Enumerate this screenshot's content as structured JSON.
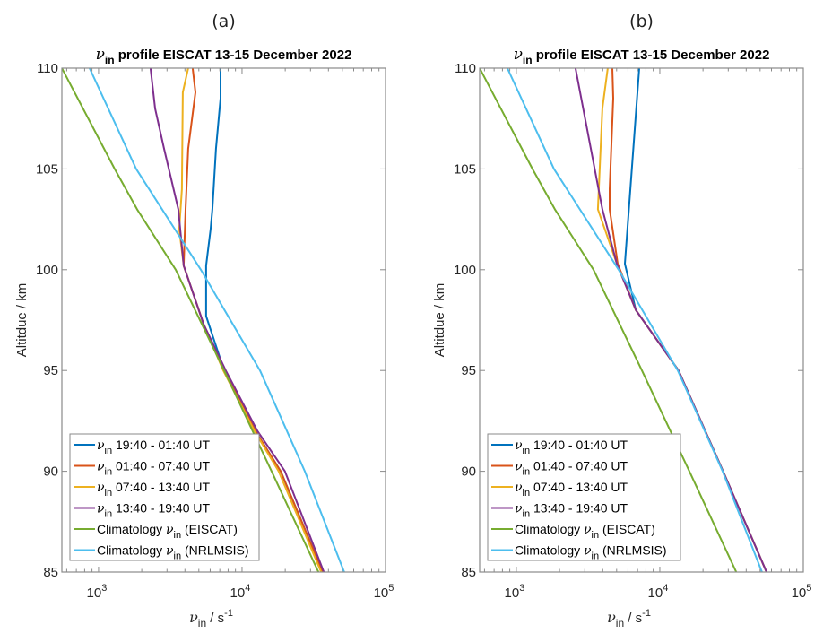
{
  "chart_data": [
    {
      "type": "line",
      "panel_label": "(a)",
      "title": {
        "symbol": "ν",
        "subscript": "in",
        "text": " profile EISCAT 13-15 December 2022"
      },
      "xlabel": {
        "symbol": "ν",
        "subscript": "in",
        "text": " / s",
        "superscript": "-1"
      },
      "ylabel": "Altitdue / km",
      "xscale": "log",
      "xlim": [
        555,
        100000
      ],
      "ylim": [
        85,
        110
      ],
      "xticks": [
        {
          "base": "10",
          "exp": "3",
          "value": 1000
        },
        {
          "base": "10",
          "exp": "4",
          "value": 10000
        },
        {
          "base": "10",
          "exp": "5",
          "value": 100000
        }
      ],
      "yticks": [
        85,
        90,
        95,
        100,
        105,
        110
      ],
      "legend_position": "bottom-left",
      "series": [
        {
          "name": "19:40 - 01:40 UT",
          "label_prefix": "ν",
          "label_sub": "in",
          "label_rest": " 19:40 - 01:40 UT",
          "color": "#0072BD",
          "points": [
            [
              7081,
              110
            ],
            [
              7081,
              108.5
            ],
            [
              6579,
              106
            ],
            [
              6213,
              103
            ],
            [
              6038,
              102
            ],
            [
              5623,
              100.2
            ],
            [
              5623,
              99.5
            ],
            [
              5623,
              97.7
            ],
            [
              7499,
              95
            ],
            [
              12385,
              92
            ],
            [
              18600,
              90
            ],
            [
              36500,
              85
            ]
          ]
        },
        {
          "name": "01:40 - 07:40 UT",
          "label_prefix": "ν",
          "label_sub": "in",
          "label_rest": " 01:40 - 07:40 UT",
          "color": "#D95319",
          "points": [
            [
              4531,
              110
            ],
            [
              4732,
              108.8
            ],
            [
              4217,
              106
            ],
            [
              4039,
              103
            ],
            [
              3924,
              100.2
            ],
            [
              5400,
              97.3
            ],
            [
              7499,
              95
            ],
            [
              12385,
              92
            ],
            [
              18600,
              90
            ],
            [
              36500,
              85
            ]
          ]
        },
        {
          "name": "07:40 - 13:40 UT",
          "label_prefix": "ν",
          "label_sub": "in",
          "label_rest": " 07:40 - 13:40 UT",
          "color": "#EDB120",
          "points": [
            [
              4217,
              110
            ],
            [
              3867,
              108.8
            ],
            [
              3811,
              104
            ],
            [
              3650,
              102
            ],
            [
              3924,
              100.2
            ],
            [
              5400,
              97.3
            ],
            [
              7400,
              95
            ],
            [
              12200,
              92
            ],
            [
              18000,
              90
            ],
            [
              35600,
              85
            ]
          ]
        },
        {
          "name": "13:40 - 19:40 UT",
          "label_prefix": "ν",
          "label_sub": "in",
          "label_rest": " 13:40 - 19:40 UT",
          "color": "#7E2F8E",
          "points": [
            [
              2303,
              110
            ],
            [
              2477,
              108
            ],
            [
              2860,
              106
            ],
            [
              3598,
              103
            ],
            [
              3924,
              100.2
            ],
            [
              5400,
              97.3
            ],
            [
              7700,
              95
            ],
            [
              12800,
              92
            ],
            [
              19897,
              90
            ],
            [
              37180,
              85
            ]
          ]
        },
        {
          "name": "Climatology (EISCAT)",
          "label_prefix": "Climatology ",
          "label_sub": "in",
          "label_symbol": "ν",
          "label_rest": " (EISCAT)",
          "color": "#77AC30",
          "points": [
            [
              555,
              110
            ],
            [
              1296,
              105
            ],
            [
              1857,
              103
            ],
            [
              3449,
              100
            ],
            [
              7499,
              95
            ],
            [
              16070,
              90
            ],
            [
              34065,
              85
            ]
          ]
        },
        {
          "name": "Climatology (NRLMSIS)",
          "label_prefix": "Climatology ",
          "label_sub": "in",
          "label_symbol": "ν",
          "label_rest": " (NRLMSIS)",
          "color": "#4DBEEE",
          "points": [
            [
              866,
              110
            ],
            [
              1830,
              105
            ],
            [
              5160,
              100
            ],
            [
              13335,
              95
            ],
            [
              27384,
              90
            ],
            [
              51530,
              85
            ]
          ]
        }
      ]
    },
    {
      "type": "line",
      "panel_label": "(b)",
      "title": {
        "symbol": "ν",
        "subscript": "in",
        "text": " profile EISCAT 13-15 December 2022"
      },
      "xlabel": {
        "symbol": "ν",
        "subscript": "in",
        "text": " / s",
        "superscript": "-1"
      },
      "ylabel": "Altitdue / km",
      "xscale": "log",
      "xlim": [
        555,
        100000
      ],
      "ylim": [
        85,
        110
      ],
      "xticks": [
        {
          "base": "10",
          "exp": "3",
          "value": 1000
        },
        {
          "base": "10",
          "exp": "4",
          "value": 10000
        },
        {
          "base": "10",
          "exp": "5",
          "value": 100000
        }
      ],
      "yticks": [
        85,
        90,
        95,
        100,
        105,
        110
      ],
      "legend_position": "bottom-left",
      "series": [
        {
          "name": "19:40 - 01:40 UT",
          "label_prefix": "ν",
          "label_sub": "in",
          "label_rest": " 19:40 - 01:40 UT",
          "color": "#0072BD",
          "points": [
            [
              7187,
              110
            ],
            [
              5706,
              100.3
            ],
            [
              6800,
              98
            ],
            [
              13500,
              95
            ],
            [
              27600,
              90
            ],
            [
              55400,
              85
            ]
          ]
        },
        {
          "name": "01:40 - 07:40 UT",
          "label_prefix": "ν",
          "label_sub": "in",
          "label_rest": " 01:40 - 07:40 UT",
          "color": "#D95319",
          "points": [
            [
              4665,
              110
            ],
            [
              4732,
              108.5
            ],
            [
              4467,
              104
            ],
            [
              4467,
              103
            ],
            [
              5085,
              100.3
            ],
            [
              6800,
              98
            ],
            [
              13500,
              95
            ],
            [
              27600,
              90
            ],
            [
              55400,
              85
            ]
          ]
        },
        {
          "name": "07:40 - 13:40 UT",
          "label_prefix": "ν",
          "label_sub": "in",
          "label_rest": " 07:40 - 13:40 UT",
          "color": "#EDB120",
          "points": [
            [
              4340,
              110
            ],
            [
              3981,
              108
            ],
            [
              3704,
              103
            ],
            [
              5012,
              100.3
            ],
            [
              6800,
              98
            ],
            [
              13500,
              95
            ],
            [
              27600,
              90
            ],
            [
              55400,
              85
            ]
          ]
        },
        {
          "name": "13:40 - 19:40 UT",
          "label_prefix": "ν",
          "label_sub": "in",
          "label_rest": " 13:40 - 19:40 UT",
          "color": "#7E2F8E",
          "points": [
            [
              2583,
              110
            ],
            [
              3981,
              103
            ],
            [
              5012,
              100.3
            ],
            [
              6800,
              98
            ],
            [
              13500,
              95
            ],
            [
              27600,
              90
            ],
            [
              55400,
              85
            ]
          ]
        },
        {
          "name": "Climatology (EISCAT)",
          "label_prefix": "Climatology ",
          "label_sub": "in",
          "label_symbol": "ν",
          "label_rest": " (EISCAT)",
          "color": "#77AC30",
          "points": [
            [
              555,
              110
            ],
            [
              1296,
              105
            ],
            [
              1857,
              103
            ],
            [
              3449,
              100
            ],
            [
              7499,
              95
            ],
            [
              16070,
              90
            ],
            [
              34065,
              85
            ]
          ]
        },
        {
          "name": "Climatology (NRLMSIS)",
          "label_prefix": "Climatology ",
          "label_sub": "in",
          "label_symbol": "ν",
          "label_rest": " (NRLMSIS)",
          "color": "#4DBEEE",
          "points": [
            [
              866,
              110
            ],
            [
              1830,
              105
            ],
            [
              5160,
              100
            ],
            [
              13335,
              95
            ],
            [
              27384,
              90
            ],
            [
              51530,
              85
            ]
          ]
        }
      ]
    }
  ]
}
